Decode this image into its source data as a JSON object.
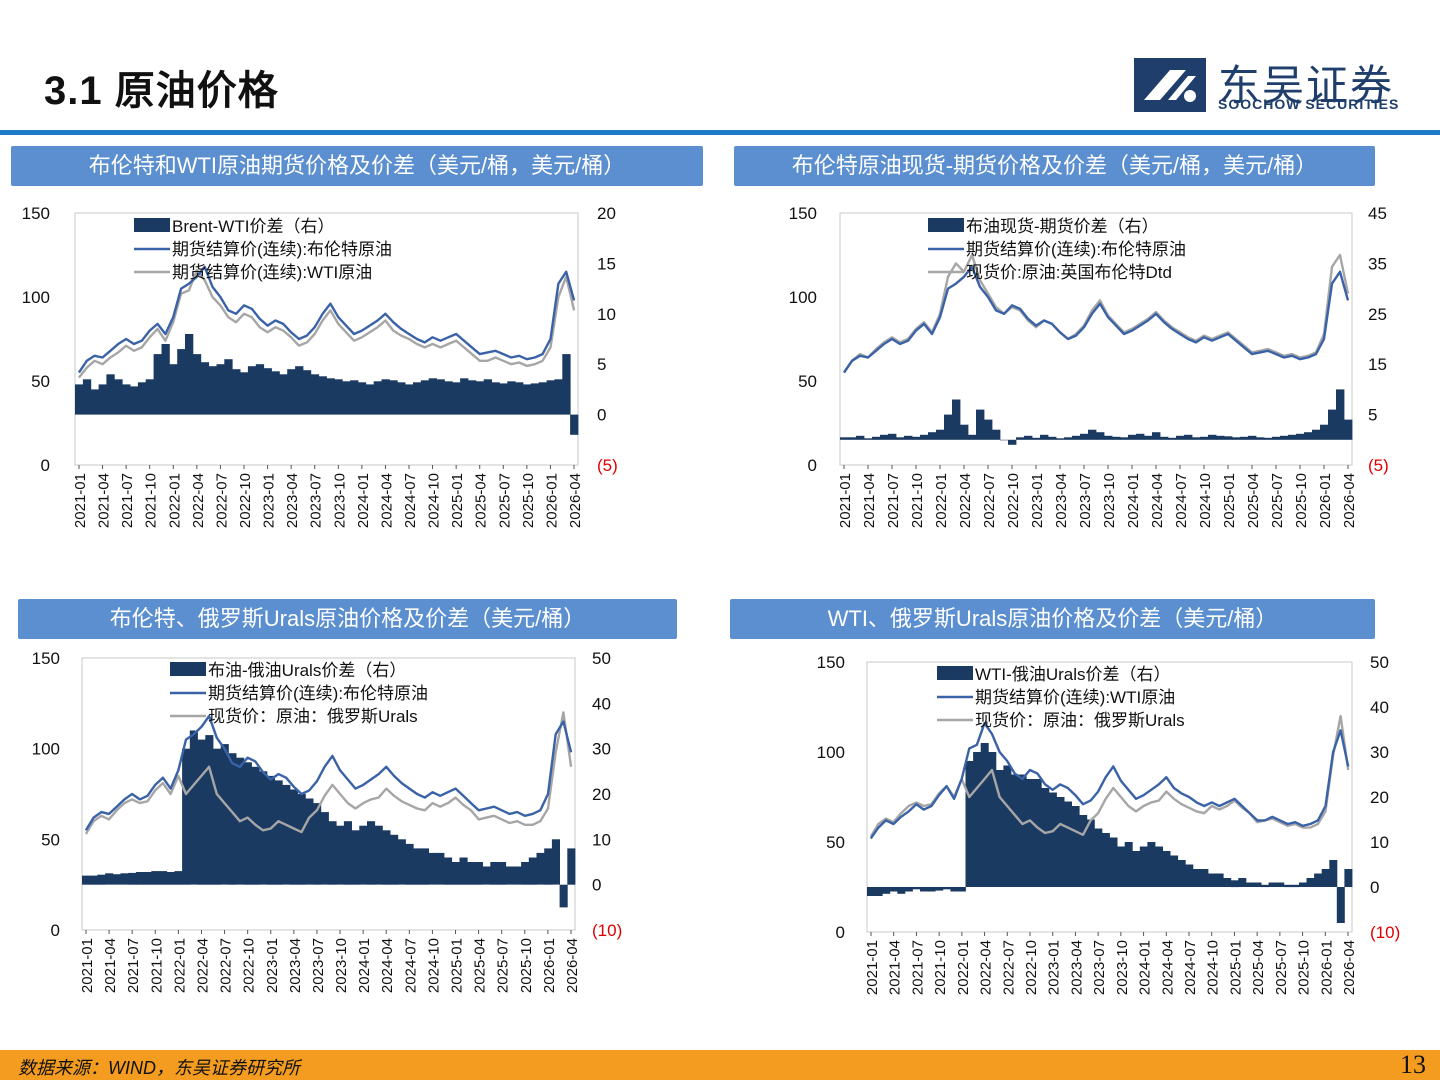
{
  "header": {
    "title": "3.1 原油价格"
  },
  "logo": {
    "cn": "东吴证券",
    "en": "SOOCHOW SECURITIES"
  },
  "footer": {
    "source": "数据来源：WIND，东吴证券研究所",
    "page": "13"
  },
  "colors": {
    "navy": "#1b3a62",
    "blue_line": "#3a62a7",
    "gray_line": "#a6a6a6",
    "panel_bg": "#5b8fd0",
    "footer_bar": "#f39c1f",
    "negative": "#e00000"
  },
  "chart_data": [
    {
      "id": "c1",
      "type": "bar+line",
      "title": "布伦特和WTI原油期货价格及价差（美元/桶，美元/桶）",
      "x_ticks": [
        "2021-01",
        "2021-04",
        "2021-07",
        "2021-10",
        "2022-01",
        "2022-04",
        "2022-07",
        "2022-10",
        "2023-01",
        "2023-04",
        "2023-07",
        "2023-10",
        "2024-01",
        "2024-04",
        "2024-07",
        "2024-10",
        "2025-01",
        "2025-04",
        "2025-07",
        "2025-10",
        "2026-01",
        "2026-04"
      ],
      "y_left": {
        "range": [
          0,
          150
        ],
        "ticks": [
          "0",
          "50",
          "100",
          "150"
        ]
      },
      "y_right": {
        "range": [
          -5,
          20
        ],
        "ticks": [
          "(5)",
          "0",
          "5",
          "10",
          "15",
          "20"
        ]
      },
      "legend": [
        "Brent-WTI价差（右）",
        "期货结算价(连续):布伦特原油",
        "期货结算价(连续):WTI原油"
      ],
      "series": [
        {
          "name": "Brent-WTI价差（右）",
          "kind": "bar",
          "axis": "right",
          "values": [
            3,
            3.5,
            2.5,
            3,
            4,
            3.5,
            3,
            2.8,
            3.2,
            3.5,
            6,
            7,
            5,
            6.5,
            8,
            6,
            5.2,
            4.8,
            5,
            5.5,
            4.5,
            4.2,
            4.8,
            5,
            4.6,
            4.3,
            4,
            4.5,
            4.8,
            4.4,
            4,
            3.8,
            3.6,
            3.5,
            3.3,
            3.4,
            3.2,
            3,
            3.3,
            3.5,
            3.4,
            3.2,
            3,
            3.2,
            3.4,
            3.6,
            3.5,
            3.3,
            3.2,
            3.6,
            3.4,
            3.3,
            3.5,
            3.2,
            3.1,
            3.3,
            3.2,
            3,
            3.1,
            3.2,
            3.4,
            3.5,
            6,
            -2
          ]
        },
        {
          "name": "期货结算价(连续):布伦特原油",
          "kind": "line",
          "axis": "left",
          "values": [
            55,
            62,
            65,
            64,
            68,
            72,
            75,
            72,
            74,
            80,
            84,
            78,
            88,
            105,
            108,
            112,
            118,
            106,
            100,
            92,
            90,
            95,
            93,
            87,
            83,
            86,
            84,
            79,
            75,
            77,
            82,
            90,
            96,
            88,
            83,
            78,
            80,
            83,
            86,
            90,
            85,
            81,
            78,
            75,
            73,
            76,
            74,
            76,
            78,
            74,
            70,
            66,
            67,
            68,
            66,
            64,
            65,
            63,
            64,
            66,
            75,
            108,
            115,
            98
          ]
        },
        {
          "name": "期货结算价(连续):WTI原油",
          "kind": "line",
          "axis": "left",
          "values": [
            52,
            58,
            62,
            60,
            64,
            67,
            71,
            68,
            70,
            76,
            81,
            74,
            85,
            102,
            104,
            116,
            110,
            100,
            95,
            88,
            85,
            90,
            88,
            82,
            79,
            82,
            80,
            76,
            71,
            73,
            78,
            86,
            92,
            84,
            79,
            74,
            76,
            79,
            82,
            86,
            80,
            77,
            75,
            72,
            70,
            72,
            70,
            72,
            74,
            70,
            66,
            62,
            62,
            64,
            62,
            60,
            61,
            59,
            60,
            62,
            70,
            100,
            112,
            92
          ]
        }
      ]
    },
    {
      "id": "c2",
      "type": "bar+line",
      "title": "布伦特原油现货-期货价格及价差（美元/桶，美元/桶）",
      "x_ticks": [
        "2021-01",
        "2021-04",
        "2021-07",
        "2021-10",
        "2022-01",
        "2022-04",
        "2022-07",
        "2022-10",
        "2023-01",
        "2023-04",
        "2023-07",
        "2023-10",
        "2024-01",
        "2024-04",
        "2024-07",
        "2024-10",
        "2025-01",
        "2025-04",
        "2025-07",
        "2025-10",
        "2026-01",
        "2026-04"
      ],
      "y_left": {
        "range": [
          0,
          150
        ],
        "ticks": [
          "0",
          "50",
          "100",
          "150"
        ]
      },
      "y_right": {
        "range": [
          -5,
          45
        ],
        "ticks": [
          "(5)",
          "5",
          "15",
          "25",
          "35",
          "45"
        ]
      },
      "legend": [
        "布油现货-期货价差（右）",
        "期货结算价(连续):布伦特原油",
        "现货价:原油:英国布伦特Dtd"
      ],
      "series": [
        {
          "name": "布油现货-期货价差（右）",
          "kind": "bar",
          "axis": "right",
          "values": [
            0.5,
            0.5,
            0.8,
            0.3,
            0.6,
            1,
            1.2,
            0.5,
            0.8,
            0.6,
            1,
            1.5,
            2,
            5,
            8,
            3,
            1,
            6,
            4,
            2,
            0,
            -1,
            0.5,
            0.8,
            0.4,
            1,
            0.6,
            0.3,
            0.5,
            0.8,
            1.2,
            2,
            1.5,
            0.8,
            0.6,
            0.5,
            1,
            1.2,
            0.8,
            1.5,
            0.6,
            0.4,
            0.8,
            1,
            0.5,
            0.6,
            1,
            0.8,
            0.7,
            0.5,
            0.6,
            0.8,
            0.5,
            0.4,
            0.6,
            0.8,
            1,
            1.2,
            1.5,
            2,
            3,
            6,
            10,
            4
          ]
        },
        {
          "name": "期货结算价(连续):布伦特原油",
          "kind": "line",
          "axis": "left",
          "values": [
            55,
            62,
            65,
            64,
            68,
            72,
            75,
            72,
            74,
            80,
            84,
            78,
            88,
            105,
            108,
            112,
            118,
            106,
            100,
            92,
            90,
            95,
            93,
            87,
            83,
            86,
            84,
            79,
            75,
            77,
            82,
            90,
            96,
            88,
            83,
            78,
            80,
            83,
            86,
            90,
            85,
            81,
            78,
            75,
            73,
            76,
            74,
            76,
            78,
            74,
            70,
            66,
            67,
            68,
            66,
            64,
            65,
            63,
            64,
            66,
            75,
            108,
            115,
            98
          ]
        },
        {
          "name": "现货价:原油:英国布伦特Dtd",
          "kind": "line",
          "axis": "left",
          "values": [
            55,
            62,
            66,
            64,
            69,
            73,
            76,
            73,
            75,
            81,
            85,
            79,
            90,
            112,
            120,
            115,
            125,
            110,
            102,
            94,
            90,
            94,
            92,
            86,
            82,
            86,
            84,
            79,
            75,
            78,
            83,
            92,
            98,
            89,
            84,
            79,
            81,
            84,
            87,
            91,
            86,
            82,
            79,
            76,
            74,
            77,
            75,
            77,
            79,
            75,
            71,
            67,
            68,
            69,
            67,
            65,
            66,
            64,
            65,
            67,
            78,
            118,
            125,
            102
          ]
        }
      ]
    },
    {
      "id": "c3",
      "type": "bar+line",
      "title": "布伦特、俄罗斯Urals原油价格及价差（美元/桶）",
      "x_ticks": [
        "2021-01",
        "2021-04",
        "2021-07",
        "2021-10",
        "2022-01",
        "2022-04",
        "2022-07",
        "2022-10",
        "2023-01",
        "2023-04",
        "2023-07",
        "2023-10",
        "2024-01",
        "2024-04",
        "2024-07",
        "2024-10",
        "2025-01",
        "2025-04",
        "2025-07",
        "2025-10",
        "2026-01",
        "2026-04"
      ],
      "y_left": {
        "range": [
          0,
          150
        ],
        "ticks": [
          "0",
          "50",
          "100",
          "150"
        ]
      },
      "y_right": {
        "range": [
          -10,
          50
        ],
        "ticks": [
          "(10)",
          "0",
          "10",
          "20",
          "30",
          "40",
          "50"
        ]
      },
      "legend": [
        "布油-俄油Urals价差（右）",
        "期货结算价(连续):布伦特原油",
        "现货价：原油：俄罗斯Urals"
      ],
      "series": [
        {
          "name": "布油-俄油Urals价差（右）",
          "kind": "bar",
          "axis": "right",
          "values": [
            2,
            2,
            2.2,
            2.5,
            2.3,
            2.5,
            2.6,
            2.8,
            2.8,
            3,
            3,
            2.8,
            3,
            30,
            34,
            32,
            33,
            30,
            31,
            29,
            28,
            27,
            26,
            25,
            24,
            23,
            22,
            21,
            20,
            19,
            18,
            16,
            14,
            13,
            14,
            12,
            13,
            14,
            13,
            12,
            11,
            10,
            9,
            8,
            8,
            7,
            7,
            6,
            5,
            6,
            5,
            5,
            4,
            5,
            5,
            4,
            4,
            5,
            6,
            7,
            8,
            10,
            -5,
            8
          ]
        },
        {
          "name": "期货结算价(连续):布伦特原油",
          "kind": "line",
          "axis": "left",
          "values": [
            55,
            62,
            65,
            64,
            68,
            72,
            75,
            72,
            74,
            80,
            84,
            78,
            88,
            105,
            108,
            112,
            118,
            106,
            100,
            92,
            90,
            95,
            93,
            87,
            83,
            86,
            84,
            79,
            75,
            77,
            82,
            90,
            96,
            88,
            83,
            78,
            80,
            83,
            86,
            90,
            85,
            81,
            78,
            75,
            73,
            76,
            74,
            76,
            78,
            74,
            70,
            66,
            67,
            68,
            66,
            64,
            65,
            63,
            64,
            66,
            75,
            108,
            115,
            98
          ]
        },
        {
          "name": "现货价：原油：俄罗斯Urals",
          "kind": "line",
          "axis": "left",
          "values": [
            53,
            60,
            63,
            61,
            66,
            70,
            72,
            70,
            71,
            77,
            81,
            75,
            85,
            75,
            80,
            85,
            90,
            75,
            70,
            65,
            60,
            62,
            58,
            55,
            56,
            60,
            58,
            56,
            54,
            62,
            66,
            74,
            80,
            75,
            70,
            67,
            70,
            72,
            73,
            78,
            74,
            71,
            69,
            67,
            66,
            70,
            68,
            70,
            73,
            69,
            66,
            61,
            62,
            63,
            61,
            59,
            60,
            58,
            58,
            60,
            67,
            98,
            120,
            90
          ]
        }
      ]
    },
    {
      "id": "c4",
      "type": "bar+line",
      "title": "WTI、俄罗斯Urals原油价格及价差（美元/桶）",
      "x_ticks": [
        "2021-01",
        "2021-04",
        "2021-07",
        "2021-10",
        "2022-01",
        "2022-04",
        "2022-07",
        "2022-10",
        "2023-01",
        "2023-04",
        "2023-07",
        "2023-10",
        "2024-01",
        "2024-04",
        "2024-07",
        "2024-10",
        "2025-01",
        "2025-04",
        "2025-07",
        "2025-10",
        "2026-01",
        "2026-04"
      ],
      "y_left": {
        "range": [
          0,
          150
        ],
        "ticks": [
          "0",
          "50",
          "100",
          "150"
        ]
      },
      "y_right": {
        "range": [
          -10,
          50
        ],
        "ticks": [
          "(10)",
          "0",
          "10",
          "20",
          "30",
          "40",
          "50"
        ]
      },
      "legend": [
        "WTI-俄油Urals价差（右）",
        "期货结算价(连续):WTI原油",
        "现货价：原油：俄罗斯Urals"
      ],
      "series": [
        {
          "name": "WTI-俄油Urals价差（右）",
          "kind": "bar",
          "axis": "right",
          "values": [
            -2,
            -2,
            -1.5,
            -1,
            -1.5,
            -1,
            -0.5,
            -1,
            -1,
            -0.8,
            -0.5,
            -1,
            -1,
            28,
            30,
            32,
            30,
            26,
            27,
            25,
            25,
            24,
            24,
            22,
            21,
            20,
            19,
            18,
            16,
            15,
            13,
            12,
            11,
            9,
            10,
            8,
            9,
            10,
            9,
            8,
            7,
            6,
            5,
            4,
            4,
            3,
            3,
            2,
            1.5,
            2,
            1,
            1,
            0.5,
            1,
            1,
            0.5,
            0.5,
            1,
            2,
            3,
            4,
            6,
            -8,
            4
          ]
        },
        {
          "name": "期货结算价(连续):WTI原油",
          "kind": "line",
          "axis": "left",
          "values": [
            52,
            58,
            62,
            60,
            64,
            67,
            71,
            68,
            70,
            76,
            81,
            74,
            85,
            102,
            104,
            116,
            110,
            100,
            95,
            88,
            85,
            90,
            88,
            82,
            79,
            82,
            80,
            76,
            71,
            73,
            78,
            86,
            92,
            84,
            79,
            74,
            76,
            79,
            82,
            86,
            80,
            77,
            75,
            72,
            70,
            72,
            70,
            72,
            74,
            70,
            66,
            62,
            62,
            64,
            62,
            60,
            61,
            59,
            60,
            62,
            70,
            100,
            112,
            92
          ]
        },
        {
          "name": "现货价：原油：俄罗斯Urals",
          "kind": "line",
          "axis": "left",
          "values": [
            53,
            60,
            63,
            61,
            66,
            70,
            72,
            70,
            71,
            77,
            81,
            75,
            85,
            75,
            80,
            85,
            90,
            75,
            70,
            65,
            60,
            62,
            58,
            55,
            56,
            60,
            58,
            56,
            54,
            62,
            66,
            74,
            80,
            75,
            70,
            67,
            70,
            72,
            73,
            78,
            74,
            71,
            69,
            67,
            66,
            70,
            68,
            70,
            73,
            69,
            66,
            61,
            62,
            63,
            61,
            59,
            60,
            58,
            58,
            60,
            67,
            98,
            120,
            90
          ]
        }
      ]
    }
  ]
}
